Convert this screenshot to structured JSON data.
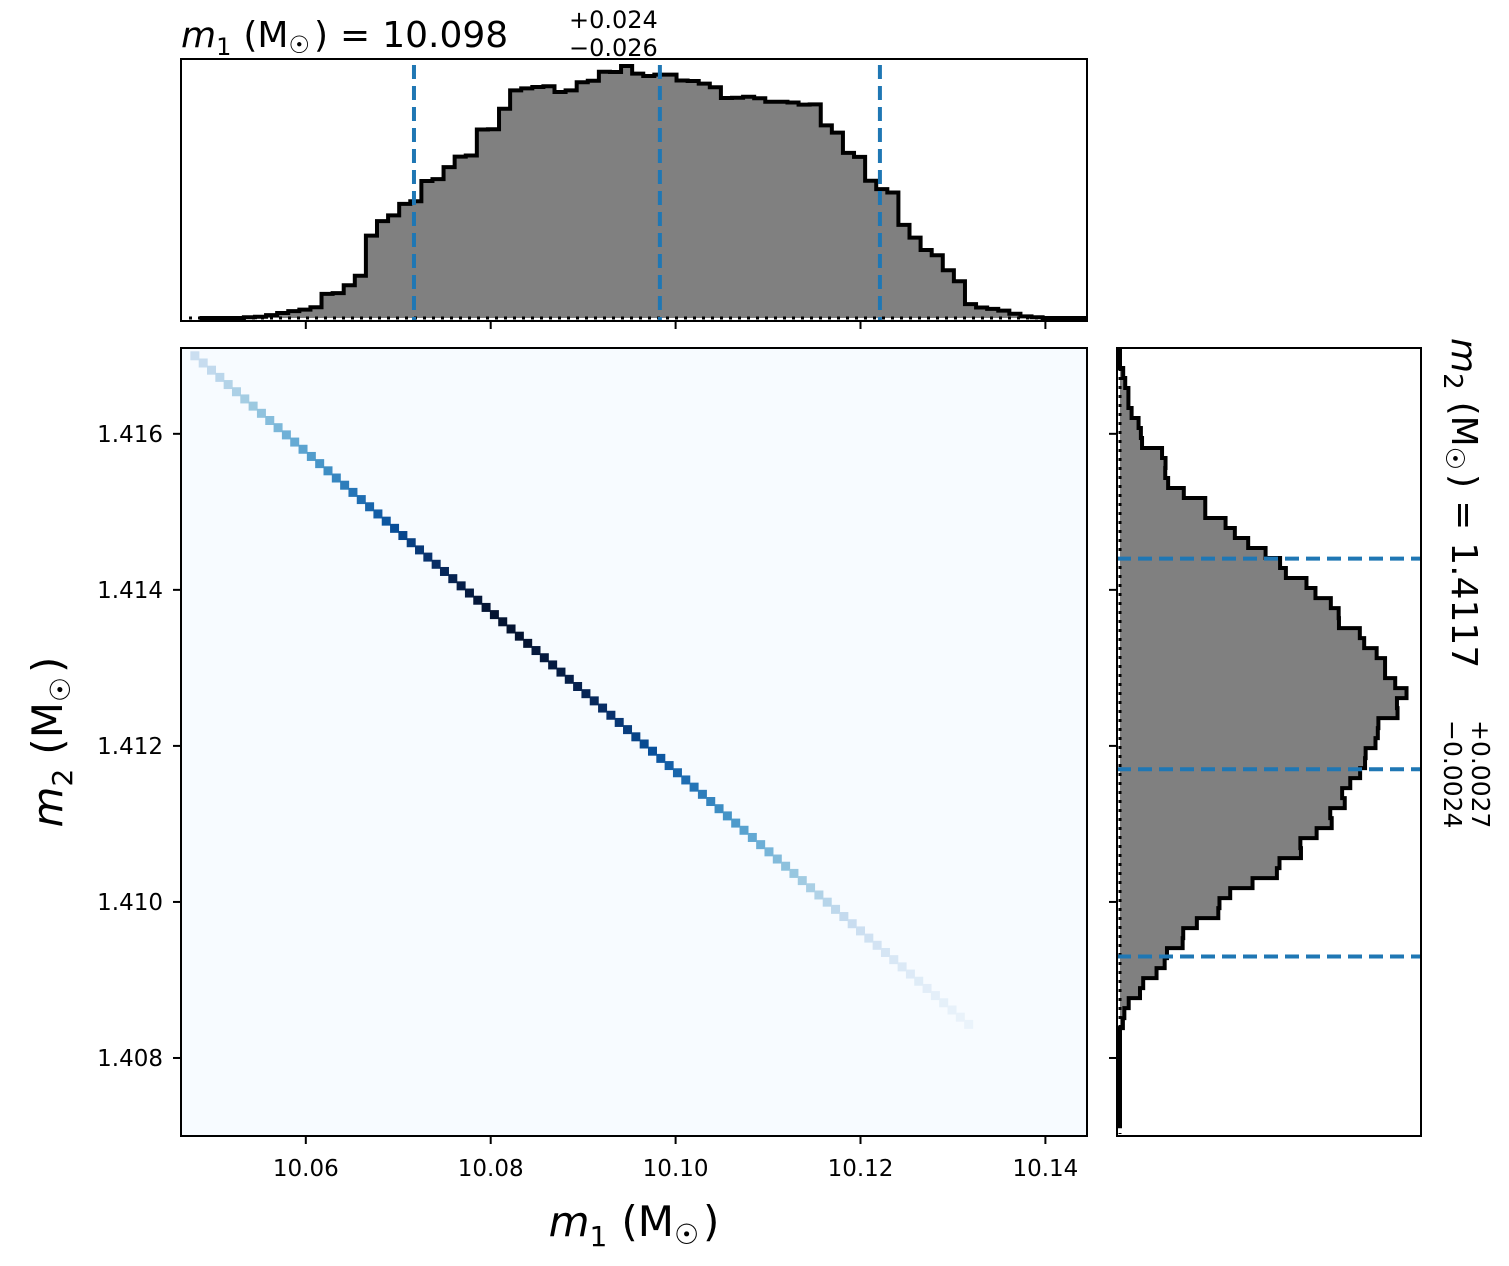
{
  "chart_data": [
    {
      "type": "histogram",
      "panel": "top-marginal",
      "variable": "m1",
      "title": {
        "symbol": "m",
        "subscript": "1",
        "unit": "(M",
        "unit_sub": "☉",
        "unit_close": ")",
        "equals": "=",
        "median": "10.098",
        "err_plus": "+0.024",
        "err_minus": "−0.026"
      },
      "xlim": [
        10.0465,
        10.1445
      ],
      "ticks": [
        10.06,
        10.08,
        10.1,
        10.12,
        10.14
      ],
      "bin_edges_range": [
        10.0485,
        10.1445
      ],
      "densities": [
        0,
        0,
        0,
        0,
        0.3,
        0.5,
        1.1,
        1.9,
        2.6,
        3.2,
        4.1,
        9.2,
        9.5,
        12.5,
        16.1,
        31.4,
        36.9,
        39.1,
        43.5,
        44.5,
        52.2,
        52.9,
        57.5,
        61.5,
        61.9,
        71.8,
        71.9,
        79.7,
        86.7,
        87.5,
        88.0,
        88.3,
        86.1,
        86.7,
        89.8,
        90.4,
        93.8,
        93.7,
        96.0,
        93.1,
        92.2,
        92.7,
        92.7,
        90.5,
        90.3,
        89.3,
        87.9,
        83.8,
        83.9,
        84.3,
        83.7,
        82.4,
        82.4,
        82.1,
        81.3,
        81.4,
        73.4,
        70.6,
        62.9,
        61.4,
        52.3,
        49.1,
        47.8,
        35.5,
        30.6,
        25.9,
        23.9,
        18.2,
        14.0,
        5.3,
        4.0,
        3.5,
        2.8,
        1.6,
        0.6,
        0.3,
        0,
        0,
        0,
        0
      ],
      "quantile_lines": [
        10.0717,
        10.0983,
        10.1221
      ]
    },
    {
      "type": "heatmap",
      "panel": "joint",
      "xlabel": {
        "symbol": "m",
        "subscript": "1",
        "unit": "(M",
        "unit_sub": "☉",
        "unit_close": ")"
      },
      "ylabel": {
        "symbol": "m",
        "subscript": "2",
        "unit": "(M",
        "unit_sub": "☉",
        "unit_close": ")"
      },
      "xlim": [
        10.0465,
        10.1445
      ],
      "ylim": [
        1.407,
        1.4171
      ],
      "xticks": [
        10.06,
        10.08,
        10.1,
        10.12,
        10.14
      ],
      "yticks": [
        1.408,
        1.41,
        1.412,
        1.414,
        1.416
      ],
      "ridge_start": [
        10.048,
        1.417
      ],
      "ridge_end": [
        10.132,
        1.4084
      ],
      "ridge_peak_m1": 10.084,
      "colormap": "Blues"
    },
    {
      "type": "histogram",
      "panel": "right-marginal",
      "orientation": "horizontal",
      "variable": "m2",
      "title": {
        "symbol": "m",
        "subscript": "2",
        "unit": "(M",
        "unit_sub": "☉",
        "unit_close": ")",
        "equals": "=",
        "median": "1.4117",
        "err_plus": "+0.0027",
        "err_minus": "−0.0024"
      },
      "ylim": [
        1.407,
        1.4171
      ],
      "ticks": [
        1.408,
        1.41,
        1.412,
        1.414,
        1.416
      ],
      "bin_edges_range": [
        1.4071,
        1.4171
      ],
      "densities": [
        0,
        0,
        0,
        0,
        0,
        0,
        0,
        0,
        0,
        0,
        1.0,
        1.5,
        3.0,
        6.9,
        8.0,
        12.6,
        15.4,
        16.2,
        21.6,
        21.8,
        26.5,
        33.9,
        34.3,
        38.0,
        45.7,
        54.1,
        55.0,
        62.4,
        62.2,
        67.8,
        73.0,
        72.5,
        77.5,
        76.6,
        79.4,
        82.8,
        84.5,
        84.7,
        88.1,
        88.9,
        89.1,
        95.7,
        95.5,
        98.8,
        94.9,
        91.4,
        91.4,
        88.5,
        84.2,
        82.7,
        75.5,
        75.4,
        72.7,
        67.4,
        64.3,
        57.2,
        55.2,
        50.2,
        44.2,
        39.6,
        36.4,
        29.4,
        29.4,
        22.0,
        16.6,
        15.6,
        15.7,
        14.5,
        7.6,
        7.2,
        6.4,
        4.0,
        2.9,
        2.9,
        1.8,
        1.1,
        0,
        0
      ],
      "quantile_lines": [
        1.4093,
        1.4117,
        1.4144
      ]
    }
  ]
}
